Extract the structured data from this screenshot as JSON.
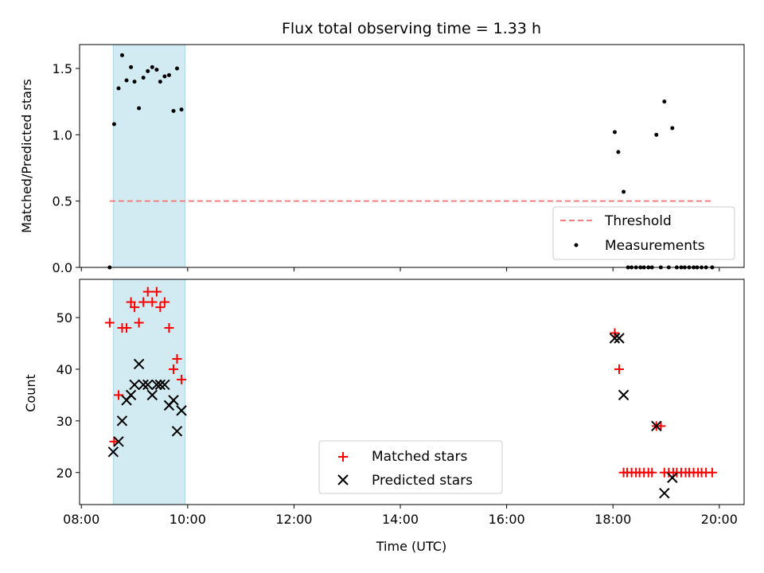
{
  "chart_data": {
    "title": "Flux total observing time = 1.33 h",
    "xlabel": "Time (UTC)",
    "xlim": [
      "07:58",
      "20:28"
    ],
    "xticks": [
      "08:00",
      "10:00",
      "12:00",
      "14:00",
      "16:00",
      "18:00",
      "20:00"
    ],
    "shaded_span": {
      "start": "08:36",
      "end": "09:57",
      "color": "#add8e6"
    },
    "panels": [
      {
        "id": "ratio",
        "type": "scatter",
        "ylabel": "Matched/Predicted stars",
        "ylim": [
          0,
          1.68
        ],
        "yticks": [
          "0.0",
          "0.5",
          "1.0",
          "1.5"
        ],
        "legend_position": "lower-right",
        "threshold": {
          "name": "Threshold",
          "value": 0.5,
          "x_start": "08:32",
          "x_end": "19:52",
          "color": "#f08080"
        },
        "series": [
          {
            "name": "Measurements",
            "marker": "dot",
            "color": "#000000",
            "points": [
              [
                "08:32",
                0.0
              ],
              [
                "08:37",
                1.08
              ],
              [
                "08:42",
                1.35
              ],
              [
                "08:46",
                1.6
              ],
              [
                "08:51",
                1.41
              ],
              [
                "08:56",
                1.51
              ],
              [
                "09:00",
                1.4
              ],
              [
                "09:05",
                1.2
              ],
              [
                "09:10",
                1.43
              ],
              [
                "09:15",
                1.48
              ],
              [
                "09:20",
                1.51
              ],
              [
                "09:25",
                1.49
              ],
              [
                "09:29",
                1.4
              ],
              [
                "09:34",
                1.44
              ],
              [
                "09:39",
                1.45
              ],
              [
                "09:44",
                1.18
              ],
              [
                "09:48",
                1.5
              ],
              [
                "09:53",
                1.19
              ],
              [
                "18:02",
                1.02
              ],
              [
                "18:06",
                0.87
              ],
              [
                "18:12",
                0.57
              ],
              [
                "18:17",
                0.0
              ],
              [
                "18:21",
                0.0
              ],
              [
                "18:26",
                0.0
              ],
              [
                "18:31",
                0.0
              ],
              [
                "18:35",
                0.0
              ],
              [
                "18:40",
                0.0
              ],
              [
                "18:44",
                0.0
              ],
              [
                "18:49",
                1.0
              ],
              [
                "18:54",
                0.0
              ],
              [
                "18:58",
                1.25
              ],
              [
                "19:03",
                0.0
              ],
              [
                "19:07",
                1.05
              ],
              [
                "19:12",
                0.0
              ],
              [
                "19:17",
                0.0
              ],
              [
                "19:21",
                0.0
              ],
              [
                "19:26",
                0.0
              ],
              [
                "19:31",
                0.0
              ],
              [
                "19:35",
                0.0
              ],
              [
                "19:40",
                0.0
              ],
              [
                "19:45",
                0.0
              ],
              [
                "19:52",
                0.0
              ]
            ]
          }
        ]
      },
      {
        "id": "count",
        "type": "scatter",
        "ylabel": "Count",
        "ylim": [
          13.8,
          57.4
        ],
        "yticks": [
          "20",
          "30",
          "40",
          "50"
        ],
        "legend_position": "lower-center",
        "series": [
          {
            "name": "Matched stars",
            "marker": "plus",
            "color": "#ff0000",
            "points": [
              [
                "08:32",
                49
              ],
              [
                "08:37",
                26
              ],
              [
                "08:42",
                35
              ],
              [
                "08:46",
                48
              ],
              [
                "08:51",
                48
              ],
              [
                "08:56",
                53
              ],
              [
                "09:00",
                52
              ],
              [
                "09:05",
                49
              ],
              [
                "09:10",
                53
              ],
              [
                "09:15",
                55
              ],
              [
                "09:20",
                53
              ],
              [
                "09:25",
                55
              ],
              [
                "09:29",
                52
              ],
              [
                "09:34",
                53
              ],
              [
                "09:39",
                48
              ],
              [
                "09:44",
                40
              ],
              [
                "09:48",
                42
              ],
              [
                "09:53",
                38
              ],
              [
                "18:02",
                47
              ],
              [
                "18:07",
                40
              ],
              [
                "18:12",
                20
              ],
              [
                "18:16",
                20
              ],
              [
                "18:21",
                20
              ],
              [
                "18:26",
                20
              ],
              [
                "18:30",
                20
              ],
              [
                "18:35",
                20
              ],
              [
                "18:40",
                20
              ],
              [
                "18:44",
                20
              ],
              [
                "18:49",
                29
              ],
              [
                "18:54",
                29
              ],
              [
                "18:58",
                20
              ],
              [
                "19:03",
                20
              ],
              [
                "19:08",
                20
              ],
              [
                "19:12",
                20
              ],
              [
                "19:17",
                20
              ],
              [
                "19:22",
                20
              ],
              [
                "19:26",
                20
              ],
              [
                "19:31",
                20
              ],
              [
                "19:36",
                20
              ],
              [
                "19:40",
                20
              ],
              [
                "19:45",
                20
              ],
              [
                "19:52",
                20
              ]
            ]
          },
          {
            "name": "Predicted stars",
            "marker": "x",
            "color": "#000000",
            "points": [
              [
                "08:36",
                24
              ],
              [
                "08:42",
                26
              ],
              [
                "08:46",
                30
              ],
              [
                "08:51",
                34
              ],
              [
                "08:56",
                35
              ],
              [
                "09:00",
                37
              ],
              [
                "09:05",
                41
              ],
              [
                "09:10",
                37
              ],
              [
                "09:15",
                37
              ],
              [
                "09:20",
                35
              ],
              [
                "09:25",
                37
              ],
              [
                "09:29",
                37
              ],
              [
                "09:34",
                37
              ],
              [
                "09:39",
                33
              ],
              [
                "09:44",
                34
              ],
              [
                "09:48",
                28
              ],
              [
                "09:53",
                32
              ],
              [
                "18:02",
                46
              ],
              [
                "18:07",
                46
              ],
              [
                "18:12",
                35
              ],
              [
                "18:49",
                29
              ],
              [
                "18:58",
                16
              ],
              [
                "19:07",
                19
              ]
            ]
          }
        ]
      }
    ]
  }
}
